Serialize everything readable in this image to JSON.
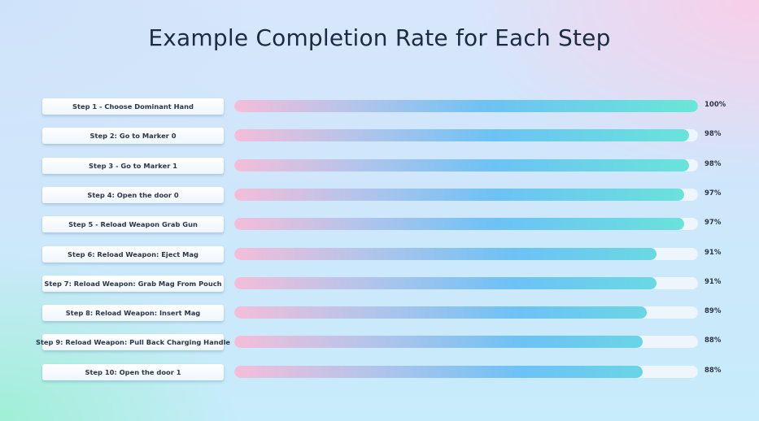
{
  "title": "Example Completion Rate for Each Step",
  "chart_data": {
    "type": "bar",
    "orientation": "horizontal",
    "title": "Example Completion Rate for Each Step",
    "categories": [
      "Step 1 - Choose Dominant Hand",
      "Step 2: Go to Marker 0",
      "Step 3 - Go to Marker 1",
      "Step 4: Open the door 0",
      "Step 5 - Reload Weapon Grab Gun",
      "Step 6: Reload Weapon: Eject Mag",
      "Step 7: Reload Weapon: Grab Mag From Pouch",
      "Step 8: Reload Weapon: Insert Mag",
      "Step 9: Reload Weapon: Pull Back Charging Handle",
      "Step 10: Open the door 1"
    ],
    "values": [
      100,
      98,
      98,
      97,
      97,
      91,
      91,
      89,
      88,
      88
    ],
    "value_labels": [
      "100%",
      "98%",
      "98%",
      "97%",
      "97%",
      "91%",
      "91%",
      "89%",
      "88%",
      "88%"
    ],
    "xlim": [
      0,
      100
    ],
    "unit": "%",
    "grid": false,
    "legend": "none",
    "colors": {
      "bar_gradient": [
        "#f4bdd9",
        "#b6c4ea",
        "#6cc2f5",
        "#69e7d7"
      ],
      "track": "#f0f6fc",
      "text": "#2d3645",
      "title": "#1c2b41"
    }
  }
}
